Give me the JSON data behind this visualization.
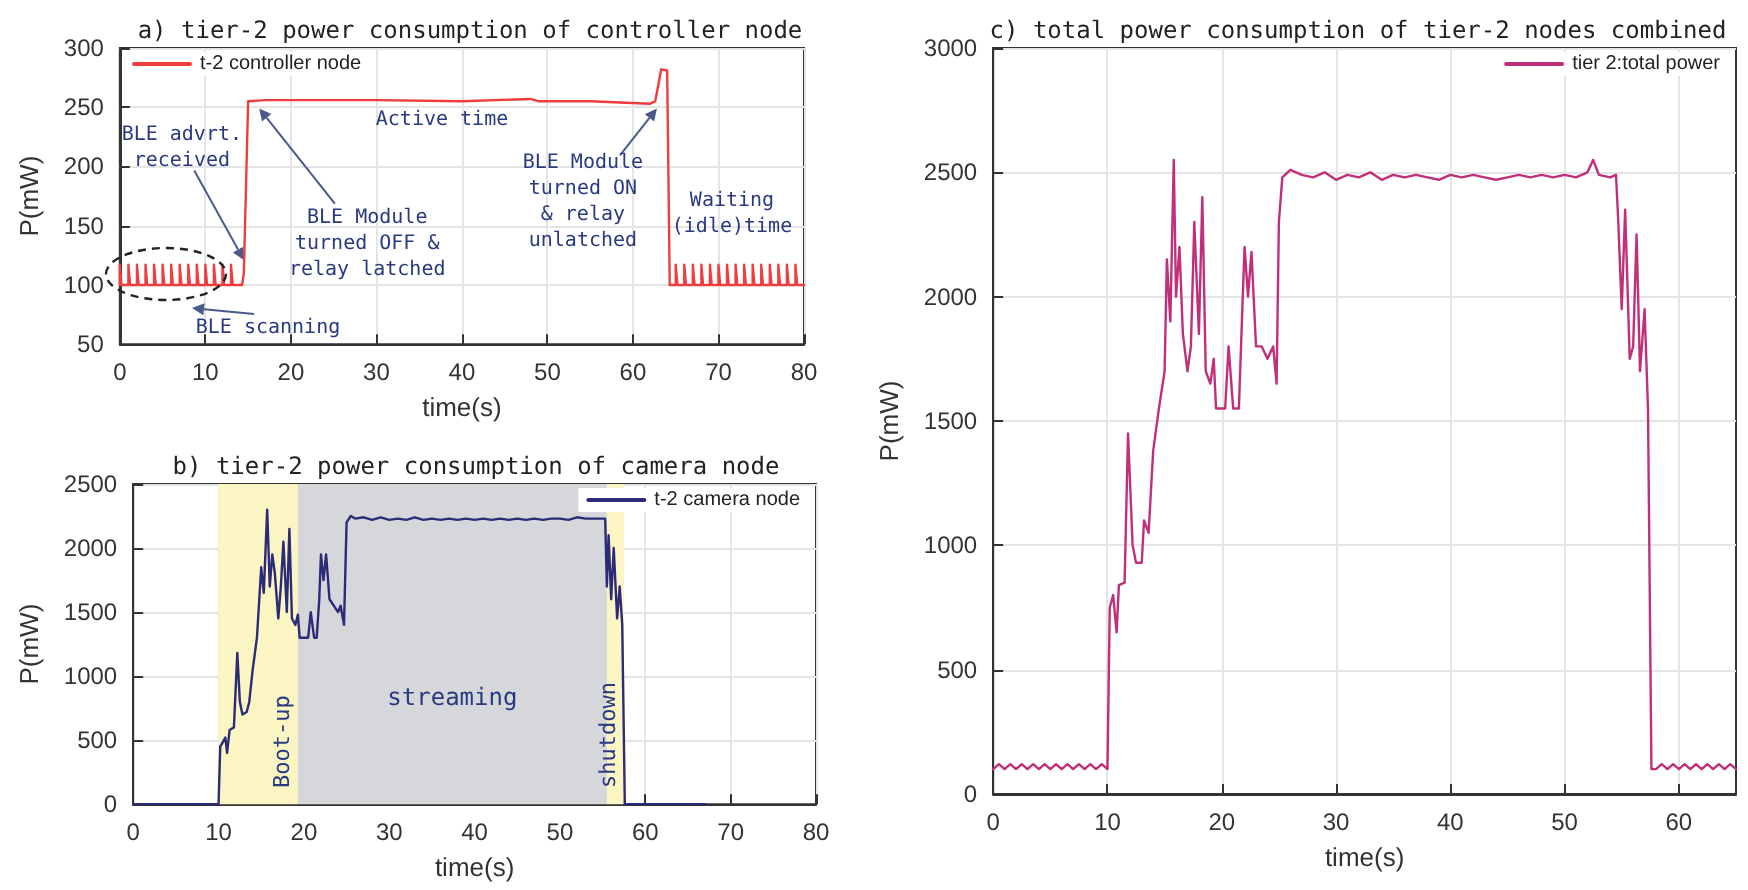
{
  "chart_data": [
    {
      "type": "line",
      "title": "a) tier-2 power consumption of controller node",
      "xlabel": "time(s)",
      "ylabel": "P(mW)",
      "xlim": [
        0,
        80
      ],
      "xticks": [
        0,
        10,
        20,
        30,
        40,
        50,
        60,
        70,
        80
      ],
      "ylim": [
        50,
        300
      ],
      "yticks": [
        50,
        100,
        150,
        200,
        250,
        300
      ],
      "grid": true,
      "legend": "top left",
      "series": [
        {
          "name": "t-2 controller node",
          "color": "#f03c3c",
          "x": [
            0,
            0,
            0.2,
            1,
            1,
            1.2,
            2,
            2,
            2.2,
            3,
            3,
            3.2,
            4,
            4,
            4.2,
            5,
            5,
            5.2,
            6,
            6,
            6.2,
            7,
            7,
            7.2,
            8,
            8,
            8.2,
            9,
            9,
            9.2,
            10,
            10,
            10.2,
            11,
            11,
            11.2,
            12,
            12,
            12.2,
            13,
            13,
            13.2,
            14.3,
            14.5,
            15,
            17,
            30,
            40,
            48,
            49,
            55,
            62,
            62.6,
            63,
            63.3,
            64,
            64.3,
            65,
            65,
            65.2,
            66,
            66,
            66.2,
            67,
            67,
            67.2,
            68,
            68,
            68.2,
            69,
            69,
            69.2,
            70,
            70,
            70.2,
            71,
            71,
            71.2,
            72,
            72,
            72.2,
            73,
            73,
            73.2,
            74,
            74,
            74.2,
            75,
            75,
            75.2,
            76,
            76,
            76.2,
            77,
            77,
            77.2,
            78,
            78,
            78.2,
            79,
            79,
            79.2,
            80
          ],
          "values": [
            100,
            117,
            100,
            100,
            117,
            100,
            100,
            117,
            100,
            100,
            117,
            100,
            100,
            117,
            100,
            100,
            117,
            100,
            100,
            117,
            100,
            100,
            117,
            100,
            100,
            117,
            100,
            100,
            117,
            100,
            100,
            117,
            100,
            100,
            117,
            100,
            100,
            117,
            100,
            100,
            117,
            100,
            100,
            110,
            255,
            256,
            256,
            255,
            257,
            255,
            255,
            253,
            255,
            270,
            282,
            281,
            100,
            100,
            117,
            100,
            100,
            117,
            100,
            100,
            117,
            100,
            100,
            117,
            100,
            100,
            117,
            100,
            100,
            117,
            100,
            100,
            117,
            100,
            100,
            117,
            100,
            100,
            117,
            100,
            100,
            117,
            100,
            100,
            117,
            100,
            100,
            117,
            100,
            100,
            117,
            100,
            100,
            117,
            100,
            100,
            117,
            100,
            100
          ]
        }
      ],
      "annotations": [
        {
          "text": "BLE advrt.\nreceived",
          "x": 14.5,
          "y": 121
        },
        {
          "text": "BLE Module\nturned OFF &\nrelay latched",
          "x": 16.3,
          "y": 249
        },
        "Active time",
        {
          "text": "BLE Module\nturned ON\n& relay\nunlatched",
          "x": 62.8,
          "y": 249
        },
        "Waiting\n(idle)time",
        "BLE scanning"
      ]
    },
    {
      "type": "line",
      "title": "b) tier-2 power consumption of camera node",
      "xlabel": "time(s)",
      "ylabel": "P(mW)",
      "xlim": [
        0,
        80
      ],
      "xticks": [
        0,
        10,
        20,
        30,
        40,
        50,
        60,
        70,
        80
      ],
      "ylim": [
        0,
        2500
      ],
      "yticks": [
        0,
        500,
        1000,
        1500,
        2000,
        2500
      ],
      "grid": true,
      "legend": "top right",
      "bands": [
        {
          "axis": "x",
          "from": 10,
          "to": 19.3,
          "label": "Boot-up",
          "color": "#faf5c3"
        },
        {
          "axis": "x",
          "from": 19.3,
          "to": 55.5,
          "label": "streaming",
          "color": "#d5d7db"
        },
        {
          "axis": "x",
          "from": 55.5,
          "to": 57.5,
          "label": "shutdown",
          "color": "#faf5c3"
        }
      ],
      "series": [
        {
          "name": "t-2 camera node",
          "color": "#2b2b78",
          "x": [
            0,
            10,
            10.2,
            10.8,
            11,
            11.3,
            11.8,
            12.2,
            12.5,
            12.8,
            13.3,
            13.6,
            14,
            14.5,
            15,
            15.3,
            15.7,
            16,
            16.3,
            16.6,
            17,
            17.3,
            17.6,
            18,
            18.3,
            18.6,
            19,
            19.3,
            19.5,
            20.5,
            20.8,
            21.2,
            21.5,
            21.8,
            22,
            22.3,
            22.6,
            23,
            23.5,
            24,
            24.3,
            24.7,
            25,
            25.5,
            26,
            27,
            28,
            29,
            30,
            31,
            32,
            33,
            34,
            35,
            36,
            37,
            38,
            39,
            40,
            41,
            42,
            43,
            44,
            45,
            46,
            47,
            48,
            49,
            50,
            51,
            52,
            53,
            54,
            55,
            55.3,
            55.5,
            55.7,
            56,
            56.3,
            56.7,
            57,
            57.3,
            57.6,
            67
          ],
          "values": [
            0,
            0,
            450,
            520,
            400,
            580,
            600,
            1180,
            800,
            700,
            720,
            800,
            1050,
            1300,
            1850,
            1650,
            2300,
            1700,
            1950,
            1800,
            1450,
            1700,
            2050,
            1500,
            2150,
            1450,
            1400,
            1480,
            1300,
            1300,
            1500,
            1300,
            1300,
            1600,
            1950,
            1750,
            1950,
            1600,
            1550,
            1500,
            1550,
            1400,
            2200,
            2250,
            2230,
            2240,
            2220,
            2240,
            2220,
            2230,
            2220,
            2240,
            2220,
            2230,
            2220,
            2230,
            2220,
            2230,
            2220,
            2230,
            2220,
            2230,
            2220,
            2230,
            2220,
            2230,
            2220,
            2230,
            2230,
            2220,
            2240,
            2230,
            2230,
            2230,
            2230,
            1700,
            2100,
            1600,
            2000,
            1450,
            1700,
            1400,
            0,
            0
          ]
        }
      ]
    },
    {
      "type": "line",
      "title": "c) total power consumption of tier-2 nodes combined",
      "xlabel": "time(s)",
      "ylabel": "P(mW)",
      "xlim": [
        0,
        65
      ],
      "xticks": [
        0,
        10,
        20,
        30,
        40,
        50,
        60
      ],
      "ylim": [
        0,
        3000
      ],
      "yticks": [
        0,
        500,
        1000,
        1500,
        2000,
        2500,
        3000
      ],
      "grid": true,
      "legend": "top right",
      "series": [
        {
          "name": "tier 2:total power",
          "color": "#c0307a",
          "x": [
            0,
            0.5,
            1,
            1.5,
            2,
            2.5,
            3,
            3.5,
            4,
            4.5,
            5,
            5.5,
            6,
            6.5,
            7,
            7.5,
            8,
            8.5,
            9,
            9.5,
            10,
            10.2,
            10.5,
            10.8,
            11,
            11.5,
            11.8,
            12.2,
            12.5,
            13,
            13.2,
            13.6,
            14,
            14.5,
            15,
            15.2,
            15.5,
            15.8,
            16,
            16.3,
            16.6,
            17,
            17.3,
            17.6,
            18,
            18.3,
            18.6,
            19,
            19.3,
            19.5,
            20.3,
            20.6,
            21,
            21.5,
            21.8,
            22,
            22.3,
            22.6,
            23,
            23.5,
            24,
            24.5,
            24.8,
            25,
            25.3,
            26,
            27,
            28,
            29,
            30,
            31,
            32,
            33,
            34,
            35,
            36,
            37,
            38,
            39,
            40,
            41,
            42,
            43,
            44,
            45,
            46,
            47,
            48,
            49,
            50,
            51,
            52,
            52.5,
            53,
            54,
            54.5,
            54.7,
            55,
            55.3,
            55.7,
            56,
            56.3,
            56.6,
            57,
            57.3,
            57.6,
            58,
            58.5,
            59,
            59.5,
            60,
            60.5,
            61,
            61.5,
            62,
            62.5,
            63,
            63.5,
            64,
            64.5,
            65
          ],
          "values": [
            100,
            120,
            100,
            120,
            100,
            120,
            100,
            120,
            100,
            120,
            100,
            120,
            100,
            120,
            100,
            120,
            100,
            120,
            100,
            120,
            100,
            750,
            800,
            650,
            840,
            850,
            1450,
            1000,
            930,
            930,
            1100,
            1050,
            1380,
            1550,
            1700,
            2150,
            1900,
            2550,
            2000,
            2200,
            1850,
            1700,
            1800,
            2300,
            1850,
            2400,
            1700,
            1650,
            1750,
            1550,
            1550,
            1800,
            1550,
            1550,
            1950,
            2200,
            2000,
            2180,
            1800,
            1800,
            1750,
            1800,
            1650,
            2300,
            2480,
            2510,
            2490,
            2480,
            2500,
            2470,
            2490,
            2480,
            2500,
            2470,
            2490,
            2480,
            2490,
            2480,
            2470,
            2490,
            2480,
            2490,
            2480,
            2470,
            2480,
            2490,
            2480,
            2490,
            2480,
            2490,
            2480,
            2500,
            2550,
            2490,
            2480,
            2490,
            2300,
            1950,
            2350,
            1750,
            1800,
            2250,
            1700,
            1950,
            1550,
            100,
            100,
            120,
            100,
            120,
            100,
            120,
            100,
            120,
            100,
            120,
            100,
            120,
            100,
            120,
            100
          ]
        }
      ]
    }
  ]
}
